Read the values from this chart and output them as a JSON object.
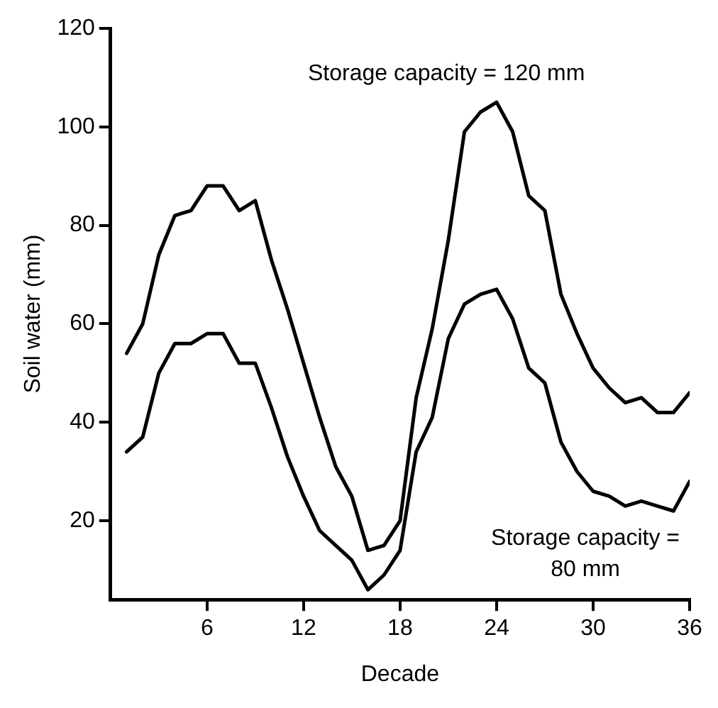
{
  "chart_data": {
    "type": "line",
    "xlabel": "Decade",
    "ylabel": "Soil water (mm)",
    "x": [
      1,
      2,
      3,
      4,
      5,
      6,
      7,
      8,
      9,
      10,
      11,
      12,
      13,
      14,
      15,
      16,
      17,
      18,
      19,
      20,
      21,
      22,
      23,
      24,
      25,
      26,
      27,
      28,
      29,
      30,
      31,
      32,
      33,
      34,
      35,
      36
    ],
    "series": [
      {
        "name": "Storage capacity = 120 mm",
        "color": "#000000",
        "values": [
          54,
          60,
          74,
          82,
          83,
          88,
          88,
          83,
          85,
          73,
          63,
          52,
          41,
          31,
          25,
          14,
          15,
          20,
          45,
          59,
          77,
          99,
          103,
          105,
          99,
          86,
          83,
          66,
          58,
          51,
          47,
          44,
          45,
          42,
          42,
          46
        ]
      },
      {
        "name": "Storage capacity = 80 mm",
        "color": "#000000",
        "values": [
          34,
          37,
          50,
          56,
          56,
          58,
          58,
          52,
          52,
          43,
          33,
          25,
          18,
          15,
          12,
          6,
          9,
          14,
          34,
          41,
          57,
          64,
          66,
          67,
          61,
          51,
          48,
          36,
          30,
          26,
          25,
          23,
          24,
          23,
          22,
          28
        ]
      }
    ],
    "xlim": [
      0,
      36
    ],
    "xticks": [
      6,
      12,
      18,
      24,
      30,
      36
    ],
    "ylim": [
      4,
      120
    ],
    "yticks": [
      20,
      40,
      60,
      80,
      100,
      120
    ],
    "grid": false,
    "legend": false,
    "marker": "none",
    "line_style": "solid"
  }
}
